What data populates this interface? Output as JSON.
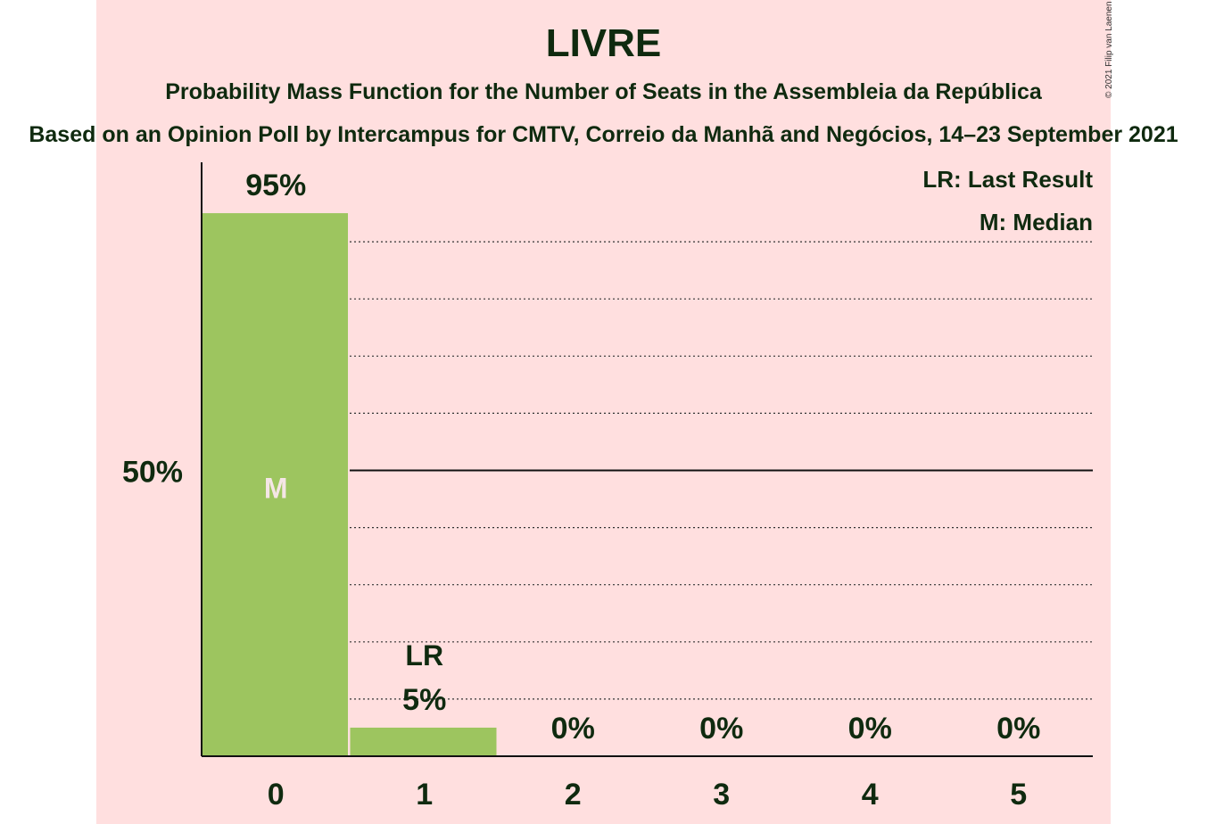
{
  "chart_data": {
    "type": "bar",
    "title": "LIVRE",
    "subtitle": "Probability Mass Function for the Number of Seats in the Assembleia da República",
    "source": "Based on an Opinion Poll by Intercampus for CMTV, Correio da Manhã and Negócios, 14–23 September 2021",
    "copyright": "© 2021 Filip van Laenen",
    "categories": [
      "0",
      "1",
      "2",
      "3",
      "4",
      "5"
    ],
    "values": [
      95,
      5,
      0,
      0,
      0,
      0
    ],
    "value_labels": [
      "95%",
      "5%",
      "0%",
      "0%",
      "0%",
      "0%"
    ],
    "ylim": [
      0,
      100
    ],
    "y_tick_label": "50%",
    "y_tick_value": 50,
    "gridlines_dotted": [
      10,
      20,
      30,
      40,
      60,
      70,
      80,
      90
    ],
    "median_category": "0",
    "median_label": "M",
    "last_result_category": "1",
    "last_result_label": "LR",
    "legend": [
      "LR: Last Result",
      "M: Median"
    ],
    "legend_position": "top-right",
    "bar_color": "#9dc55f",
    "background_color": "#ffdfdf"
  }
}
